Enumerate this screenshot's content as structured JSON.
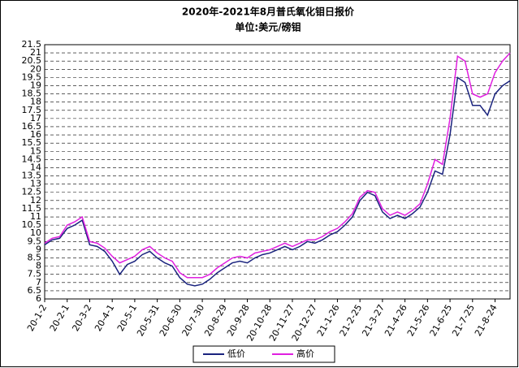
{
  "chart_data": {
    "type": "line",
    "title": "2020年-2021年8月普氏氧化钼日报价",
    "subtitle": "单位:美元/磅钼",
    "categories": [
      "20-1-2",
      null,
      null,
      "20-2-1",
      null,
      null,
      "20-3-2",
      null,
      null,
      "20-4-1",
      null,
      null,
      "20-5-1",
      null,
      null,
      "20-5-31",
      null,
      null,
      "20-6-30",
      null,
      null,
      "20-7-30",
      null,
      null,
      "20-8-29",
      null,
      null,
      "20-9-28",
      null,
      null,
      "20-10-28",
      null,
      null,
      "20-11-27",
      null,
      null,
      "20-12-27",
      null,
      null,
      "21-1-26",
      null,
      null,
      "21-2-25",
      null,
      null,
      "21-3-27",
      null,
      null,
      "21-4-26",
      null,
      null,
      "21-5-26",
      null,
      null,
      "21-6-25",
      null,
      null,
      "21-7-25",
      null,
      null,
      "21-8-24",
      null,
      null
    ],
    "series": [
      {
        "name": "低价",
        "color": "#1a237e",
        "values": [
          9.3,
          9.6,
          9.7,
          10.3,
          10.5,
          10.8,
          9.3,
          9.2,
          8.9,
          8.3,
          7.5,
          8.1,
          8.3,
          8.7,
          8.9,
          8.5,
          8.2,
          8.0,
          7.3,
          6.9,
          6.8,
          6.9,
          7.2,
          7.6,
          7.9,
          8.2,
          8.3,
          8.2,
          8.5,
          8.7,
          8.8,
          9.0,
          9.2,
          9.0,
          9.2,
          9.5,
          9.4,
          9.6,
          9.9,
          10.1,
          10.5,
          11.0,
          12.0,
          12.5,
          12.3,
          11.3,
          10.9,
          11.1,
          10.9,
          11.2,
          11.6,
          12.5,
          13.8,
          13.6,
          16.0,
          19.5,
          19.2,
          17.8,
          17.8,
          17.2,
          18.5,
          19.0,
          19.3
        ]
      },
      {
        "name": "高价",
        "color": "#e020e0",
        "values": [
          9.4,
          9.7,
          9.8,
          10.5,
          10.7,
          11.0,
          9.5,
          9.4,
          9.1,
          8.6,
          8.2,
          8.4,
          8.6,
          9.0,
          9.2,
          8.8,
          8.5,
          8.3,
          7.6,
          7.3,
          7.3,
          7.3,
          7.5,
          7.9,
          8.2,
          8.5,
          8.6,
          8.5,
          8.8,
          8.9,
          9.0,
          9.2,
          9.4,
          9.2,
          9.4,
          9.6,
          9.6,
          9.8,
          10.1,
          10.3,
          10.7,
          11.2,
          12.2,
          12.6,
          12.5,
          11.5,
          11.1,
          11.3,
          11.1,
          11.4,
          11.8,
          13.0,
          14.5,
          14.2,
          17.0,
          20.8,
          20.5,
          18.5,
          18.3,
          18.5,
          19.8,
          20.5,
          21.0
        ]
      }
    ],
    "ylim": [
      6,
      21.5
    ],
    "yticks": [
      6,
      6.5,
      7,
      7.5,
      8,
      8.5,
      9,
      9.5,
      10,
      10.5,
      11,
      11.5,
      12,
      12.5,
      13,
      13.5,
      14,
      14.5,
      15,
      15.5,
      16,
      16.5,
      17,
      17.5,
      18,
      18.5,
      19,
      19.5,
      20,
      20.5,
      21,
      21.5
    ],
    "grid": true
  }
}
